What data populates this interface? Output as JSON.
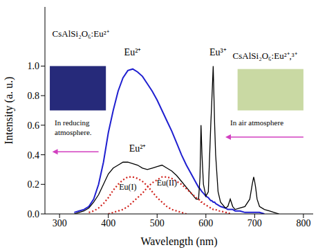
{
  "chart_data": {
    "type": "line",
    "x_label": "Wavelength (nm)",
    "y_label": "Intensity (a. u.)",
    "x": [
      330,
      340,
      350,
      360,
      370,
      380,
      390,
      400,
      410,
      420,
      430,
      440,
      450,
      460,
      470,
      480,
      490,
      500,
      510,
      520,
      530,
      540,
      550,
      560,
      570,
      580,
      585,
      588,
      590,
      592,
      595,
      600,
      605,
      610,
      612,
      615,
      618,
      620,
      625,
      630,
      640,
      645,
      650,
      655,
      660,
      670,
      680,
      690,
      695,
      698,
      700,
      702,
      705,
      710,
      720,
      730,
      740,
      750
    ],
    "series": [
      {
        "name": "CsAlSi₂O₆:Eu²⁺",
        "color": "#1f1fd0",
        "line_style": "solid",
        "values": [
          0.01,
          0.02,
          0.03,
          0.05,
          0.1,
          0.2,
          0.35,
          0.55,
          0.7,
          0.83,
          0.92,
          0.97,
          0.98,
          0.96,
          0.93,
          0.88,
          0.83,
          0.77,
          0.7,
          0.63,
          0.56,
          0.48,
          0.4,
          0.33,
          0.27,
          0.21,
          0.18,
          0.17,
          0.16,
          0.15,
          0.14,
          0.12,
          0.11,
          0.09,
          0.09,
          0.08,
          0.08,
          0.07,
          0.06,
          0.05,
          0.04,
          0.03,
          0.03,
          0.03,
          0.02,
          0.02,
          0.01,
          0.01,
          0.01,
          0.01,
          0.01,
          0.01,
          0.01,
          0.01,
          0.0,
          null,
          null,
          null
        ]
      },
      {
        "name": "CsAlSi₂O₆:Eu²⁺,³⁺",
        "color": "#000000",
        "line_style": "solid",
        "values": [
          0.0,
          0.01,
          0.02,
          0.04,
          0.08,
          0.13,
          0.2,
          0.27,
          0.31,
          0.33,
          0.35,
          0.35,
          0.34,
          0.33,
          0.31,
          0.3,
          0.31,
          0.32,
          0.33,
          0.31,
          0.29,
          0.26,
          0.22,
          0.18,
          0.14,
          0.1,
          0.1,
          0.25,
          0.6,
          0.4,
          0.2,
          0.12,
          0.15,
          0.6,
          0.75,
          1.0,
          0.6,
          0.4,
          0.15,
          0.08,
          0.04,
          0.05,
          0.1,
          0.05,
          0.03,
          0.04,
          0.05,
          0.1,
          0.2,
          0.25,
          0.22,
          0.18,
          0.1,
          0.05,
          0.03,
          0.02,
          0.01,
          0.0
        ]
      },
      {
        "name": "Eu(I)",
        "color": "#d0201a",
        "line_style": "dotted",
        "values": [
          null,
          null,
          null,
          0.01,
          0.02,
          0.04,
          0.07,
          0.11,
          0.16,
          0.2,
          0.23,
          0.25,
          0.25,
          0.24,
          0.22,
          0.19,
          0.15,
          0.11,
          0.08,
          0.05,
          0.03,
          0.02,
          0.01,
          0.0,
          null,
          null,
          null,
          null,
          null,
          null,
          null,
          null,
          null,
          null,
          null,
          null,
          null,
          null,
          null,
          null,
          null,
          null,
          null,
          null,
          null,
          null,
          null,
          null,
          null,
          null,
          null,
          null,
          null,
          null,
          null,
          null,
          null,
          null
        ]
      },
      {
        "name": "Eu(II)",
        "color": "#d0201a",
        "line_style": "dotted",
        "values": [
          null,
          null,
          null,
          null,
          null,
          null,
          null,
          0.0,
          0.01,
          0.02,
          0.03,
          0.05,
          0.08,
          0.11,
          0.14,
          0.18,
          0.21,
          0.23,
          0.25,
          0.25,
          0.24,
          0.22,
          0.2,
          0.17,
          0.14,
          0.11,
          0.1,
          0.09,
          0.08,
          0.08,
          0.07,
          0.06,
          0.05,
          0.04,
          0.04,
          0.03,
          0.03,
          0.03,
          0.02,
          0.02,
          0.01,
          0.01,
          0.0,
          null,
          null,
          null,
          null,
          null,
          null,
          null,
          null,
          null,
          null,
          null,
          null,
          null,
          null,
          null
        ]
      }
    ],
    "xlim": [
      270,
      820
    ],
    "xticks": [
      300,
      400,
      500,
      600,
      700,
      800
    ],
    "ylim": [
      0,
      1.4
    ],
    "yticks": [
      {
        "value": 0,
        "label": "0.0"
      },
      {
        "value": 0.2,
        "label": "0.2"
      },
      {
        "value": 0.4,
        "label": "0.4"
      },
      {
        "value": 0.6,
        "label": "0.6"
      },
      {
        "value": 0.8,
        "label": "0.8"
      },
      {
        "value": 1.0,
        "label": "1.0"
      }
    ],
    "annotations": [
      "Eu²⁺",
      "Eu³⁺",
      "Eu²⁺",
      "In reducing atmosphere.",
      "In air atmosphere"
    ],
    "grid": false
  }
}
